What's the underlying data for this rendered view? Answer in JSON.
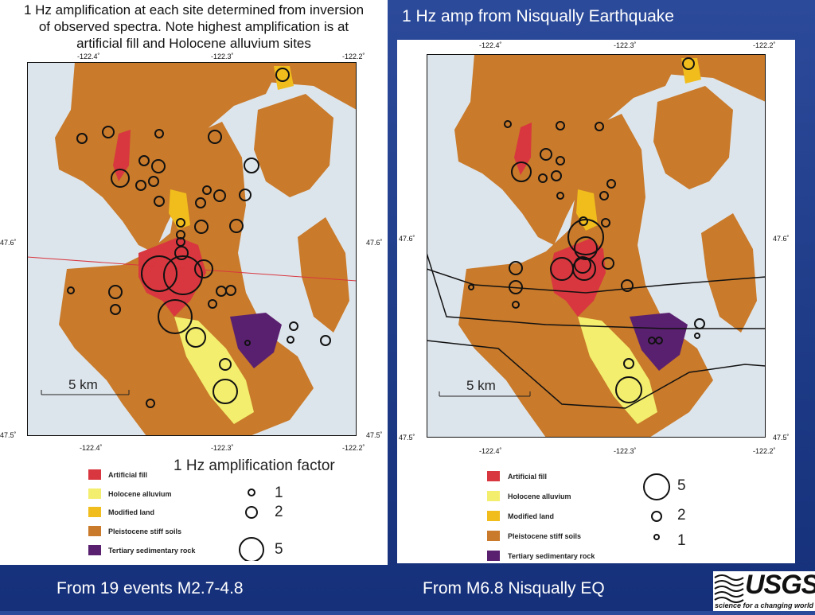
{
  "slide_title": "1 Hz amp from Nisqually Earthquake",
  "left": {
    "title_line1": "1 Hz amplification at each site determined from inversion",
    "title_line2": "of observed spectra. Note highest amplification is at",
    "title_line3": "artificial fill and Holocene alluvium sites",
    "lon_ticks": [
      "-122.4˚",
      "-122.3˚",
      "-122.2˚"
    ],
    "lat_ticks": [
      "47.6˚",
      "47.5˚"
    ],
    "scale_label": "5 km",
    "legend_title": "1 Hz amplification factor",
    "caption": "From 19 events M2.7-4.8"
  },
  "right": {
    "lon_ticks": [
      "-122.4˚",
      "-122.3˚",
      "-122.2˚"
    ],
    "lat_ticks": [
      "47.6˚",
      "47.5˚"
    ],
    "scale_label": "5 km",
    "caption": "From M6.8 Nisqually EQ"
  },
  "legend": {
    "items": [
      {
        "label": "Artificial fill",
        "color": "#d8373f"
      },
      {
        "label": "Holocene alluvium",
        "color": "#f3ee6e"
      },
      {
        "label": "Modified land",
        "color": "#f0bd1c"
      },
      {
        "label": "Pleistocene stiff soils",
        "color": "#c97a2a"
      },
      {
        "label": "Tertiary sedimentary rock",
        "color": "#5a2070"
      }
    ],
    "circle_labels_left": [
      "1",
      "2",
      "5"
    ],
    "circle_labels_right": [
      "5",
      "2",
      "1"
    ]
  },
  "colors": {
    "water": "#dde5ec",
    "pleistocene": "#c97a2a",
    "fill": "#d8373f",
    "holocene": "#f3ee6e",
    "modified": "#f0bd1c",
    "tertiary": "#5a2070"
  },
  "logo": {
    "name": "USGS",
    "tagline": "science for a changing world"
  }
}
